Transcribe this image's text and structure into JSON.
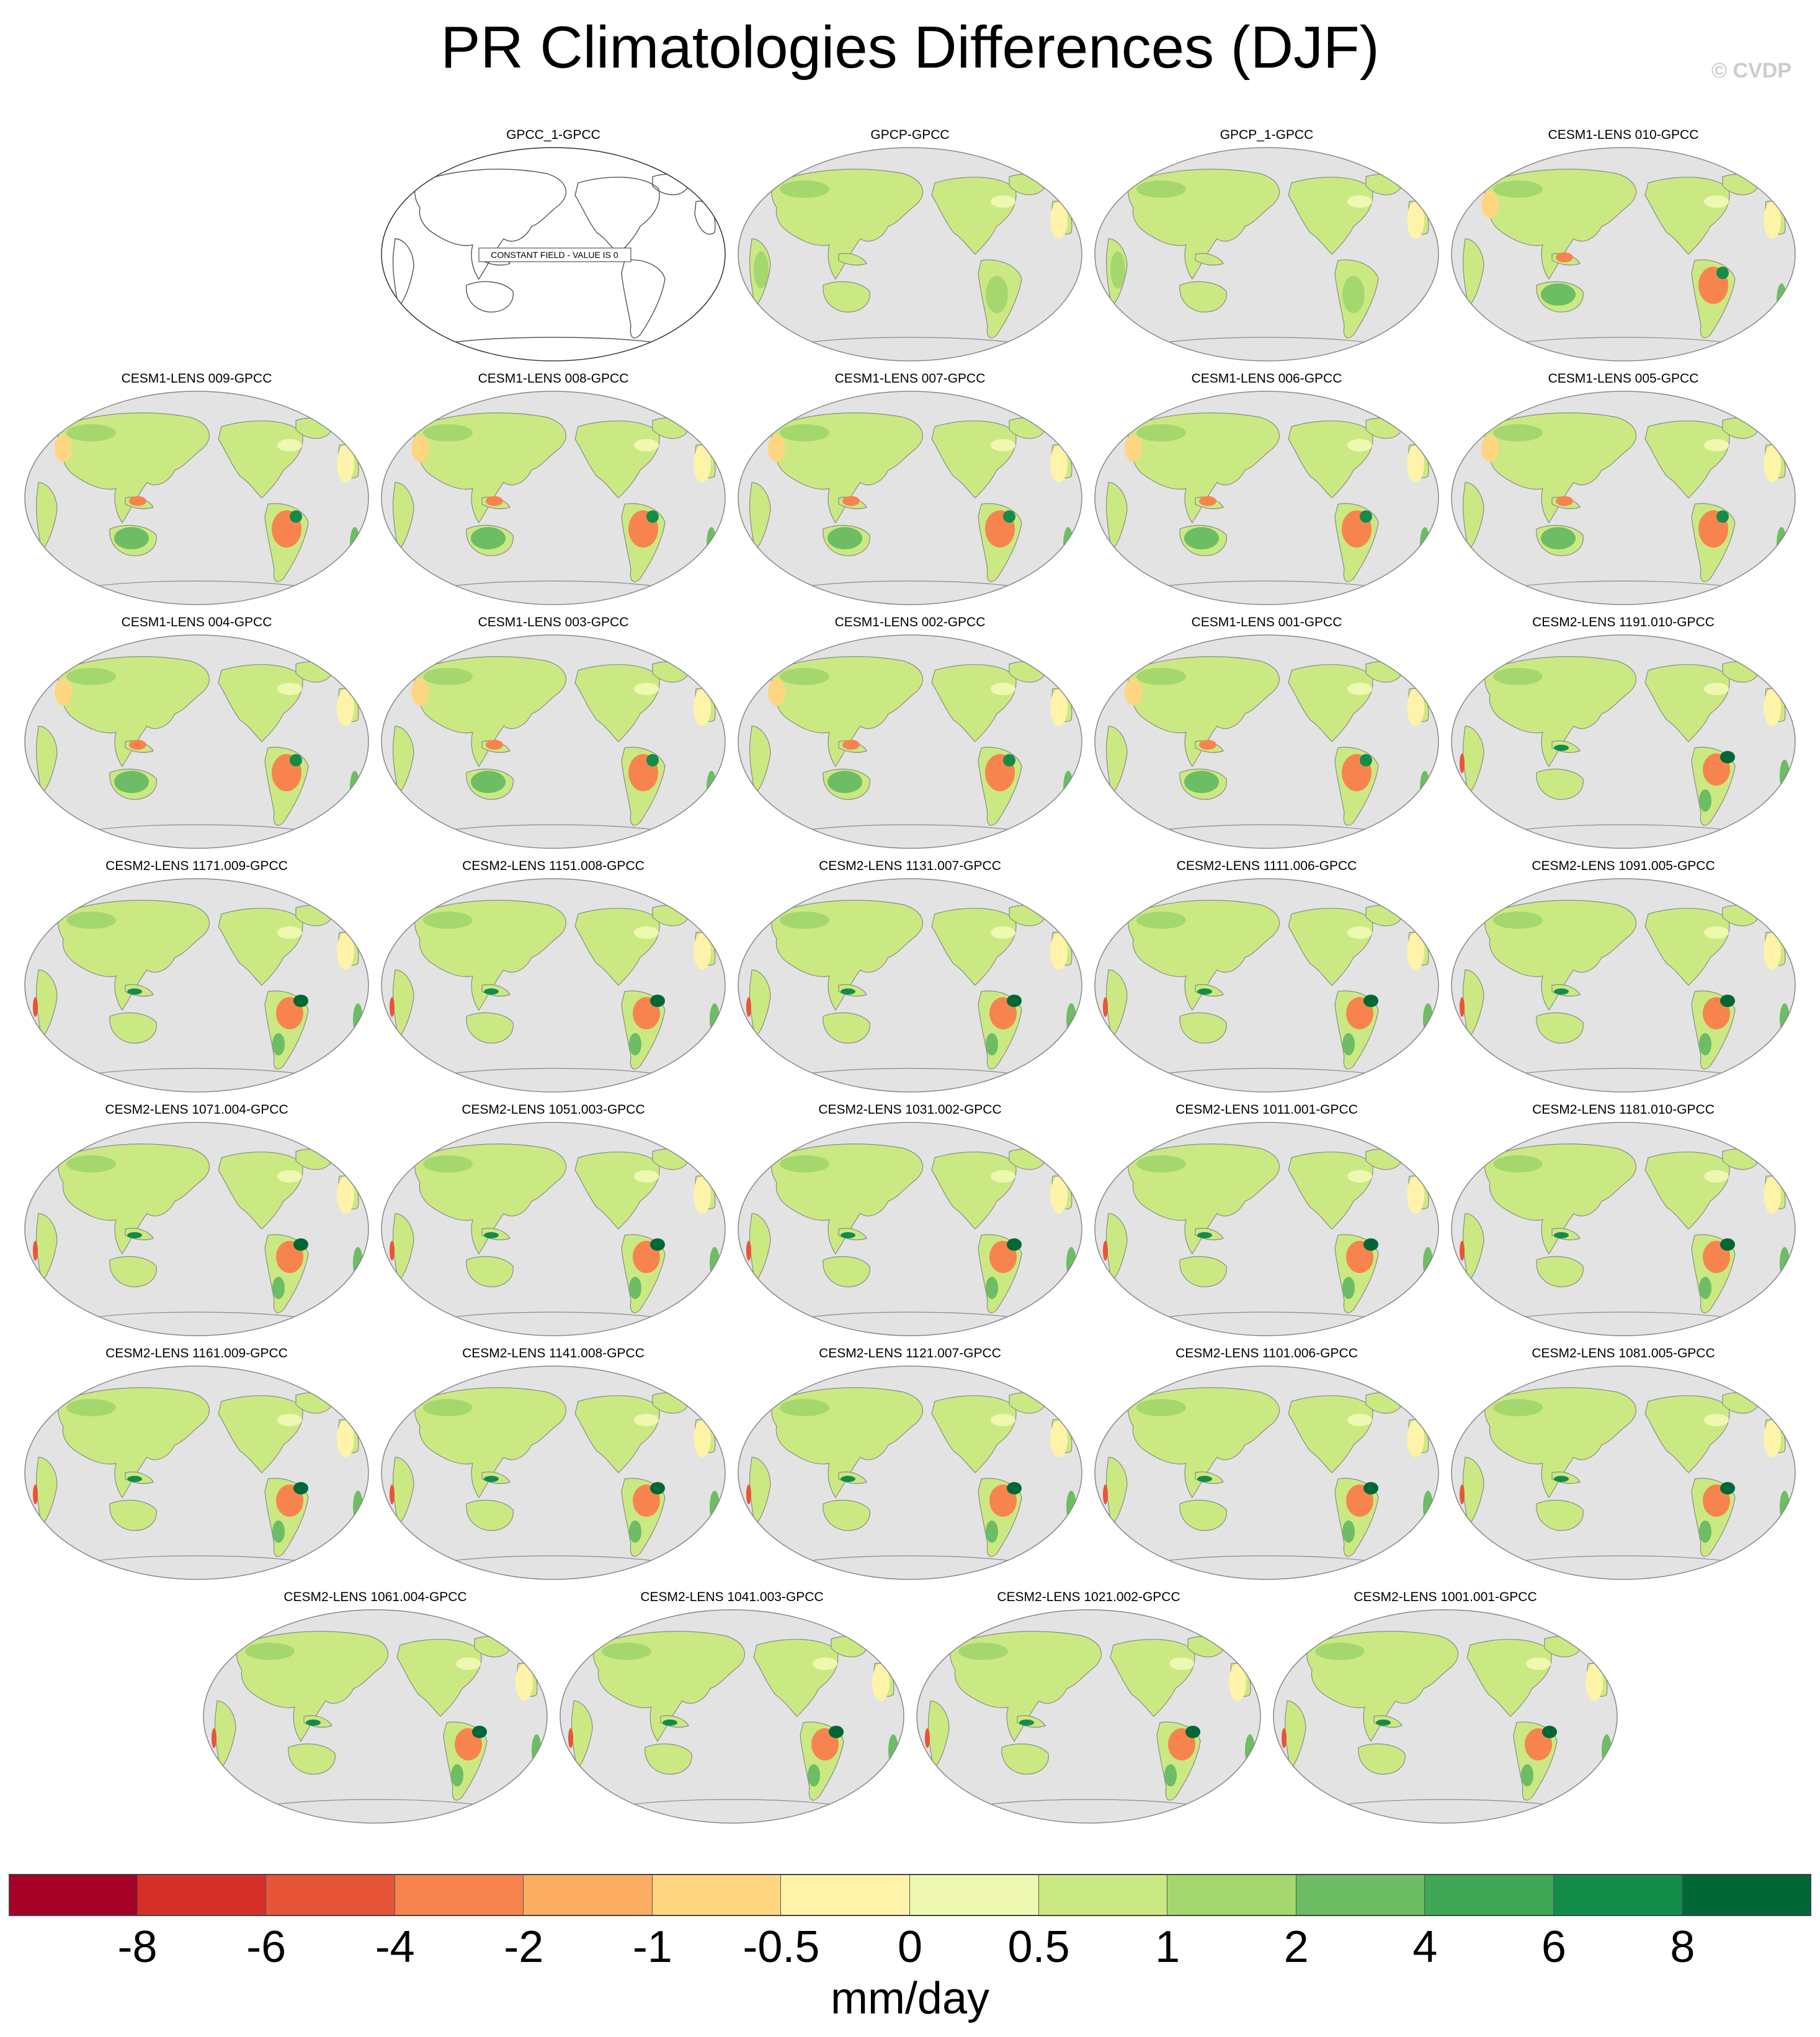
{
  "title": "PR Climatologies Differences (DJF)",
  "copyright": "© CVDP",
  "constant_field_note": "CONSTANT FIELD - VALUE IS 0",
  "panels": [
    {
      "label": "GPCC_1-GPCC",
      "constant": true
    },
    {
      "label": "GPCP-GPCC",
      "style": "obs"
    },
    {
      "label": "GPCP_1-GPCC",
      "style": "obs"
    },
    {
      "label": "CESM1-LENS 010-GPCC",
      "style": "cesm1"
    },
    {
      "label": "CESM1-LENS 009-GPCC",
      "style": "cesm1"
    },
    {
      "label": "CESM1-LENS 008-GPCC",
      "style": "cesm1"
    },
    {
      "label": "CESM1-LENS 007-GPCC",
      "style": "cesm1"
    },
    {
      "label": "CESM1-LENS 006-GPCC",
      "style": "cesm1"
    },
    {
      "label": "CESM1-LENS 005-GPCC",
      "style": "cesm1"
    },
    {
      "label": "CESM1-LENS 004-GPCC",
      "style": "cesm1"
    },
    {
      "label": "CESM1-LENS 003-GPCC",
      "style": "cesm1"
    },
    {
      "label": "CESM1-LENS 002-GPCC",
      "style": "cesm1"
    },
    {
      "label": "CESM1-LENS 001-GPCC",
      "style": "cesm1"
    },
    {
      "label": "CESM2-LENS 1191.010-GPCC",
      "style": "cesm2"
    },
    {
      "label": "CESM2-LENS 1171.009-GPCC",
      "style": "cesm2"
    },
    {
      "label": "CESM2-LENS 1151.008-GPCC",
      "style": "cesm2"
    },
    {
      "label": "CESM2-LENS 1131.007-GPCC",
      "style": "cesm2"
    },
    {
      "label": "CESM2-LENS 1111.006-GPCC",
      "style": "cesm2"
    },
    {
      "label": "CESM2-LENS 1091.005-GPCC",
      "style": "cesm2"
    },
    {
      "label": "CESM2-LENS 1071.004-GPCC",
      "style": "cesm2"
    },
    {
      "label": "CESM2-LENS 1051.003-GPCC",
      "style": "cesm2"
    },
    {
      "label": "CESM2-LENS 1031.002-GPCC",
      "style": "cesm2"
    },
    {
      "label": "CESM2-LENS 1011.001-GPCC",
      "style": "cesm2"
    },
    {
      "label": "CESM2-LENS 1181.010-GPCC",
      "style": "cesm2"
    },
    {
      "label": "CESM2-LENS 1161.009-GPCC",
      "style": "cesm2"
    },
    {
      "label": "CESM2-LENS 1141.008-GPCC",
      "style": "cesm2"
    },
    {
      "label": "CESM2-LENS 1121.007-GPCC",
      "style": "cesm2"
    },
    {
      "label": "CESM2-LENS 1101.006-GPCC",
      "style": "cesm2"
    },
    {
      "label": "CESM2-LENS 1081.005-GPCC",
      "style": "cesm2"
    },
    {
      "label": "CESM2-LENS 1061.004-GPCC",
      "style": "cesm2"
    },
    {
      "label": "CESM2-LENS 1041.003-GPCC",
      "style": "cesm2"
    },
    {
      "label": "CESM2-LENS 1021.002-GPCC",
      "style": "cesm2"
    },
    {
      "label": "CESM2-LENS 1001.001-GPCC",
      "style": "cesm2"
    }
  ],
  "colorbar": {
    "units": "mm/day",
    "labels": [
      "-8",
      "-6",
      "-4",
      "-2",
      "-1",
      "-0.5",
      "0",
      "0.5",
      "1",
      "2",
      "4",
      "6",
      "8"
    ],
    "colors": [
      "#a50026",
      "#d62f27",
      "#e75538",
      "#f7844e",
      "#fbae61",
      "#fed682",
      "#fef3a9",
      "#eef8b0",
      "#cbe982",
      "#a4d86e",
      "#6cbd63",
      "#3ea857",
      "#138c4a",
      "#006837"
    ]
  },
  "colors": {
    "ocean": "#e3e3e3",
    "coast": "#8a8a8a"
  }
}
